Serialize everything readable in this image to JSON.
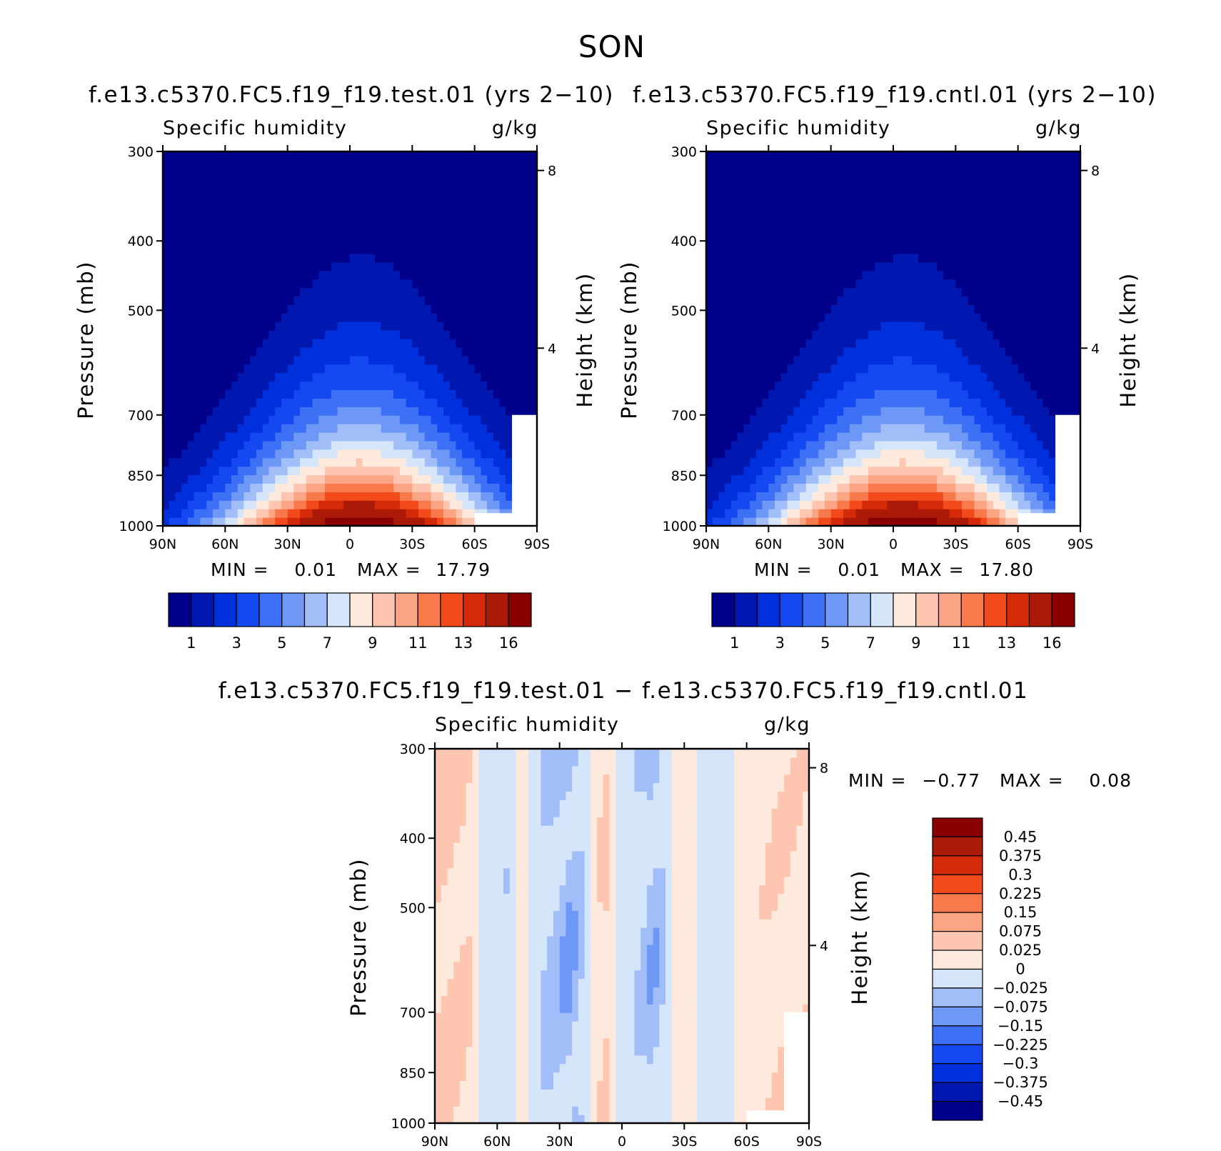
{
  "figure": {
    "title": "SON"
  },
  "colors": {
    "abs_palette": [
      "#00008a",
      "#0018b0",
      "#0030dc",
      "#1448f0",
      "#3d70f4",
      "#6e98f6",
      "#a2bef8",
      "#d6e6fa",
      "#feeadc",
      "#fec6b0",
      "#fca585",
      "#f87a4c",
      "#f24a1a",
      "#d42a0a",
      "#aa1a06",
      "#880000"
    ],
    "diff_palette": [
      "#00008a",
      "#0018b0",
      "#0030dc",
      "#1448f0",
      "#3d70f4",
      "#6e98f6",
      "#a2bef8",
      "#d6e6fa",
      "#feeadc",
      "#fec6b0",
      "#fca585",
      "#f87a4c",
      "#f24a1a",
      "#d42a0a",
      "#aa1a06",
      "#880000"
    ]
  },
  "chart_data": [
    {
      "type": "heatmap",
      "title": "f.e13.c5370.FC5.f19_f19.test.01 (yrs 2−10)",
      "left_string": "Specific humidity",
      "right_string": "g/kg",
      "xlabel": "",
      "ylabel": "Pressure (mb)",
      "y2label": "Height (km)",
      "x_ticks": [
        "90N",
        "60N",
        "30N",
        "0",
        "30S",
        "60S",
        "90S"
      ],
      "x_range": [
        90,
        -90
      ],
      "y_ticks": [
        "300",
        "400",
        "500",
        "700",
        "850",
        "1000"
      ],
      "y_range": [
        1000,
        300
      ],
      "y_scale": "log",
      "y2_ticks": [
        "8",
        "4"
      ],
      "min_label": "MIN =",
      "min_value": "0.01",
      "max_label": "MAX =",
      "max_value": "17.79",
      "levels": [
        1,
        2,
        3,
        4,
        5,
        6,
        7,
        8,
        9,
        10,
        11,
        12,
        13,
        14,
        16
      ],
      "colorbar_labels": [
        "1",
        "3",
        "5",
        "7",
        "9",
        "11",
        "13",
        "16"
      ],
      "field": {
        "peak_lat": -5,
        "peak_value": 17.8,
        "surface_halfwidth_deg": 45,
        "top_height": 0.75
      }
    },
    {
      "type": "heatmap",
      "title": "f.e13.c5370.FC5.f19_f19.cntl.01 (yrs 2−10)",
      "left_string": "Specific humidity",
      "right_string": "g/kg",
      "xlabel": "",
      "ylabel": "Pressure (mb)",
      "y2label": "Height (km)",
      "x_ticks": [
        "90N",
        "60N",
        "30N",
        "0",
        "30S",
        "60S",
        "90S"
      ],
      "x_range": [
        90,
        -90
      ],
      "y_ticks": [
        "300",
        "400",
        "500",
        "700",
        "850",
        "1000"
      ],
      "y_range": [
        1000,
        300
      ],
      "y_scale": "log",
      "y2_ticks": [
        "8",
        "4"
      ],
      "min_label": "MIN =",
      "min_value": "0.01",
      "max_label": "MAX =",
      "max_value": "17.80",
      "levels": [
        1,
        2,
        3,
        4,
        5,
        6,
        7,
        8,
        9,
        10,
        11,
        12,
        13,
        14,
        16
      ],
      "colorbar_labels": [
        "1",
        "3",
        "5",
        "7",
        "9",
        "11",
        "13",
        "16"
      ],
      "field": {
        "peak_lat": -5,
        "peak_value": 17.8,
        "surface_halfwidth_deg": 45,
        "top_height": 0.75
      }
    },
    {
      "type": "heatmap",
      "title": "f.e13.c5370.FC5.f19_f19.test.01 − f.e13.c5370.FC5.f19_f19.cntl.01",
      "left_string": "Specific humidity",
      "right_string": "g/kg",
      "xlabel": "",
      "ylabel": "Pressure (mb)",
      "y2label": "Height (km)",
      "x_ticks": [
        "90N",
        "60N",
        "30N",
        "0",
        "30S",
        "60S",
        "90S"
      ],
      "x_range": [
        90,
        -90
      ],
      "y_ticks": [
        "300",
        "400",
        "500",
        "700",
        "850",
        "1000"
      ],
      "y_range": [
        1000,
        300
      ],
      "y_scale": "log",
      "y2_ticks": [
        "8",
        "4"
      ],
      "min_label": "MIN =",
      "min_value": "−0.77",
      "max_label": "MAX =",
      "max_value": "0.08",
      "levels": [
        -0.45,
        -0.375,
        -0.3,
        -0.225,
        -0.15,
        -0.075,
        -0.025,
        0,
        0.025,
        0.075,
        0.15,
        0.225,
        0.3,
        0.375,
        0.45
      ],
      "colorbar_labels": [
        "0.45",
        "0.375",
        "0.3",
        "0.225",
        "0.15",
        "0.075",
        "0.025",
        "0",
        "−0.025",
        "−0.075",
        "−0.15",
        "−0.225",
        "−0.3",
        "−0.375",
        "−0.45"
      ],
      "field": {
        "bands": [
          {
            "lat": 90,
            "value": 0.05
          },
          {
            "lat": 75,
            "value": 0.04
          },
          {
            "lat": 68,
            "value": -0.01
          },
          {
            "lat": 55,
            "value": -0.02
          },
          {
            "lat": 48,
            "value": 0.02
          },
          {
            "lat": 38,
            "value": -0.03
          },
          {
            "lat": 30,
            "value": -0.06
          },
          {
            "lat": 25,
            "value": -0.09
          },
          {
            "lat": 18,
            "value": -0.02
          },
          {
            "lat": 8,
            "value": 0.04
          },
          {
            "lat": 0,
            "value": -0.01
          },
          {
            "lat": -10,
            "value": -0.03
          },
          {
            "lat": -15,
            "value": -0.08
          },
          {
            "lat": -22,
            "value": -0.01
          },
          {
            "lat": -30,
            "value": 0.02
          },
          {
            "lat": -38,
            "value": -0.01
          },
          {
            "lat": -50,
            "value": -0.01
          },
          {
            "lat": -60,
            "value": 0.01
          },
          {
            "lat": -75,
            "value": 0.03
          },
          {
            "lat": -90,
            "value": 0.02
          }
        ]
      }
    }
  ]
}
